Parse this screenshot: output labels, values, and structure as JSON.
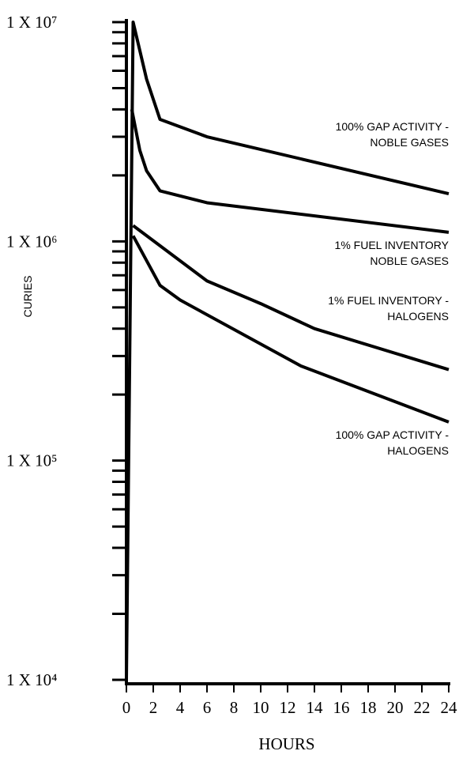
{
  "chart_data": {
    "type": "line",
    "xlabel": "HOURS",
    "ylabel": "CURIES",
    "xlim": [
      0,
      24
    ],
    "xticks": [
      0,
      2,
      4,
      6,
      8,
      10,
      12,
      14,
      16,
      18,
      20,
      22,
      24
    ],
    "ylim": [
      10000,
      10000000
    ],
    "ylog": true,
    "yticks": [
      {
        "value": 10000,
        "label": "1 X 10⁴"
      },
      {
        "value": 100000,
        "label": "1 X 10⁵"
      },
      {
        "value": 1000000,
        "label": "1 X 10⁶"
      },
      {
        "value": 10000000,
        "label": "1 X 10⁷"
      }
    ],
    "yminorticks": [
      20000,
      30000,
      40000,
      50000,
      60000,
      70000,
      80000,
      90000,
      200000,
      300000,
      400000,
      500000,
      600000,
      700000,
      800000,
      900000,
      2000000,
      3000000,
      4000000,
      5000000,
      6000000,
      7000000,
      8000000,
      9000000
    ],
    "series": [
      {
        "name": "100% GAP ACTIVITY -\nNOBLE GASES",
        "color": "#000000",
        "x": [
          0,
          0.5,
          1.5,
          2.5,
          6,
          24
        ],
        "values": [
          10000,
          10000000,
          5500000,
          3600000,
          3000000,
          1650000
        ]
      },
      {
        "name": "1% FUEL INVENTORY\nNOBLE GASES",
        "color": "#000000",
        "x": [
          0.4,
          1,
          1.5,
          2.5,
          6,
          24
        ],
        "values": [
          4000000,
          2600000,
          2100000,
          1700000,
          1500000,
          1100000
        ]
      },
      {
        "name": "1% FUEL INVENTORY -\nHALOGENS",
        "color": "#000000",
        "x": [
          0.5,
          6,
          10,
          14,
          24
        ],
        "values": [
          1180000,
          660000,
          520000,
          400000,
          260000
        ]
      },
      {
        "name": "100% GAP ACTIVITY -\nHALOGENS",
        "color": "#000000",
        "x": [
          0.5,
          2.5,
          4,
          13,
          24
        ],
        "values": [
          1060000,
          630000,
          540000,
          270000,
          150000
        ]
      }
    ]
  }
}
